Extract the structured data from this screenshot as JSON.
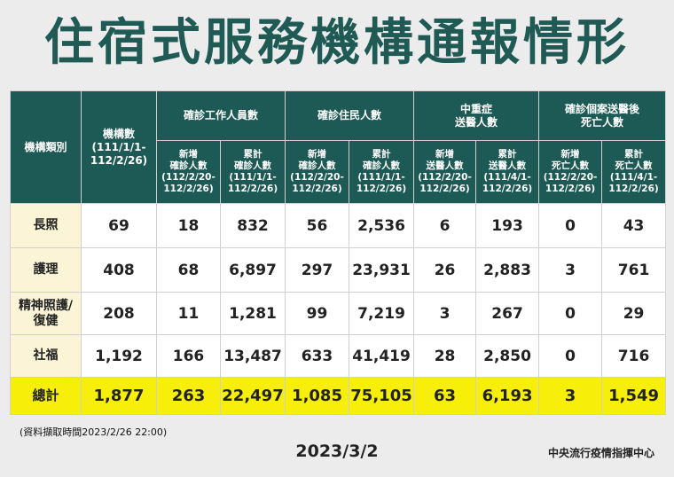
{
  "title": "住宿式服務機構通報情形",
  "header": {
    "category": "機構類別",
    "institutions": "機構數\n(111/1/1-\n112/2/26)",
    "groups": [
      "確診工作人員數",
      "確診住民人數",
      "中重症\n送醫人數",
      "確診個案送醫後\n死亡人數"
    ],
    "subs": [
      "新增\n確診人數\n(112/2/20-\n112/2/26)",
      "累計\n確診人數\n(111/1/1-\n112/2/26)",
      "新增\n確診人數\n(112/2/20-\n112/2/26)",
      "累計\n確診人數\n(111/1/1-\n112/2/26)",
      "新增\n送醫人數\n(112/2/20-\n112/2/26)",
      "累計\n送醫人數\n(111/4/1-\n112/2/26)",
      "新增\n死亡人數\n(112/2/20-\n112/2/26)",
      "累計\n死亡人數\n(111/4/1-\n112/2/26)"
    ]
  },
  "rows": [
    {
      "label": "長照",
      "values": [
        "69",
        "18",
        "832",
        "56",
        "2,536",
        "6",
        "193",
        "0",
        "43"
      ]
    },
    {
      "label": "護理",
      "values": [
        "408",
        "68",
        "6,897",
        "297",
        "23,931",
        "26",
        "2,883",
        "3",
        "761"
      ]
    },
    {
      "label": "精神照護/\n復健",
      "values": [
        "208",
        "11",
        "1,281",
        "99",
        "7,219",
        "3",
        "267",
        "0",
        "29"
      ]
    },
    {
      "label": "社福",
      "values": [
        "1,192",
        "166",
        "13,487",
        "633",
        "41,419",
        "28",
        "2,850",
        "0",
        "716"
      ]
    },
    {
      "label": "總計",
      "values": [
        "1,877",
        "263",
        "22,497",
        "1,085",
        "75,105",
        "63",
        "6,193",
        "3",
        "1,549"
      ]
    }
  ],
  "footer": {
    "note": "(資料擷取時間2023/2/26 22:00)",
    "date": "2023/3/2",
    "org": "中央流行疫情指揮中心"
  }
}
